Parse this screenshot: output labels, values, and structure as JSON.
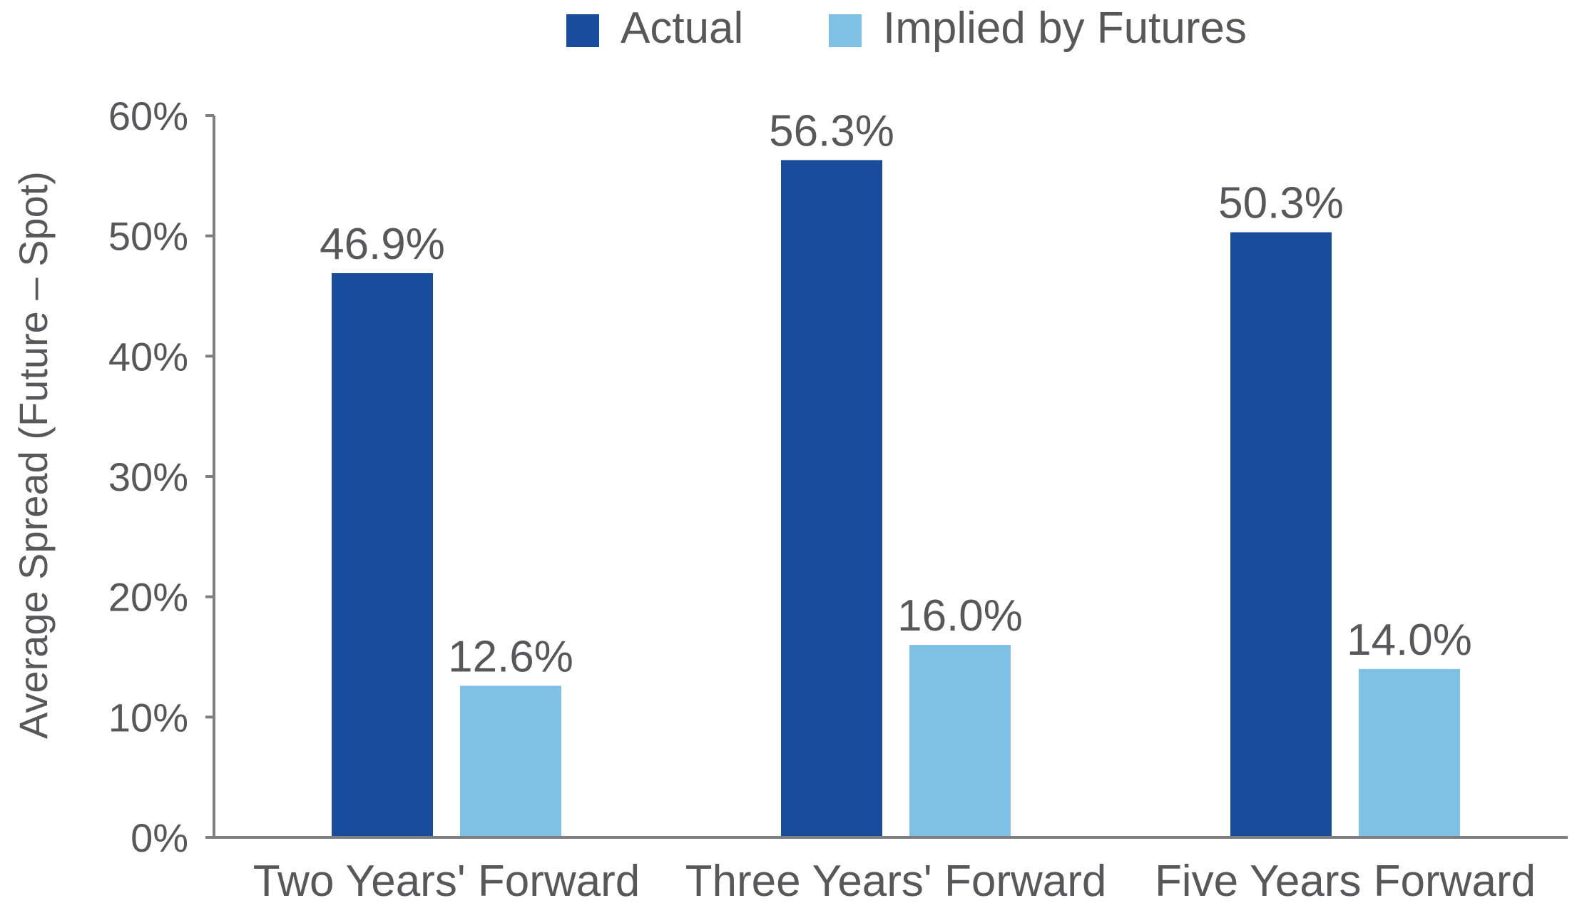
{
  "chart_data": {
    "type": "bar",
    "categories": [
      "Two Years' Forward",
      "Three Years' Forward",
      "Five Years Forward"
    ],
    "series": [
      {
        "name": "Actual",
        "values": [
          46.9,
          56.3,
          50.3
        ],
        "labels": [
          "46.9%",
          "56.3%",
          "50.3%"
        ],
        "color": "#1a4c9c"
      },
      {
        "name": "Implied by Futures",
        "values": [
          12.6,
          16.0,
          14.0
        ],
        "labels": [
          "12.6%",
          "16.0%",
          "14.0%"
        ],
        "color": "#7fc1e5"
      }
    ],
    "ylabel": "Average Spread (Future – Spot)",
    "ylim": [
      0,
      60
    ],
    "yticks": [
      "0%",
      "10%",
      "20%",
      "30%",
      "40%",
      "50%",
      "60%"
    ],
    "legend": "top-center",
    "grid": false
  }
}
